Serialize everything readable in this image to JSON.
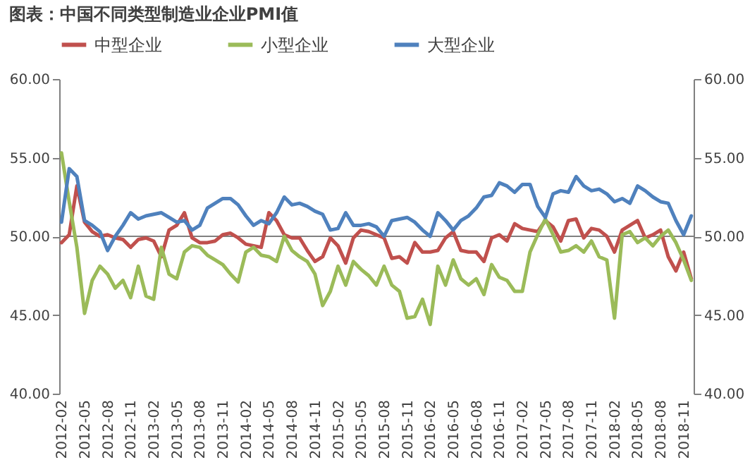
{
  "chart_data": {
    "type": "line",
    "title": "图表：中国不同类型制造业企业PMI值",
    "categories": [
      "2012-02",
      null,
      null,
      "2012-05",
      null,
      null,
      "2012-08",
      null,
      null,
      "2012-11",
      null,
      null,
      "2013-02",
      null,
      null,
      "2013-05",
      null,
      null,
      "2013-08",
      null,
      null,
      "2013-11",
      null,
      null,
      "2014-02",
      null,
      null,
      "2014-05",
      null,
      null,
      "2014-08",
      null,
      null,
      "2014-11",
      null,
      null,
      "2015-02",
      null,
      null,
      "2015-05",
      null,
      null,
      "2015-08",
      null,
      null,
      "2015-11",
      null,
      null,
      "2016-02",
      null,
      null,
      "2016-05",
      null,
      null,
      "2016-08",
      null,
      null,
      "2016-11",
      null,
      null,
      "2017-02",
      null,
      null,
      "2017-05",
      null,
      null,
      "2017-08",
      null,
      null,
      "2017-11",
      null,
      null,
      "2018-02",
      null,
      null,
      "2018-05",
      null,
      null,
      "2018-08",
      null,
      null,
      "2018-11",
      null
    ],
    "series": [
      {
        "name": "中型企业",
        "color": "#c0504d",
        "values": [
          49.6,
          50.1,
          53.2,
          50.9,
          50.3,
          50.0,
          50.1,
          49.9,
          49.8,
          49.3,
          49.8,
          49.9,
          49.7,
          48.7,
          50.4,
          50.7,
          51.5,
          49.9,
          49.6,
          49.6,
          49.7,
          50.1,
          50.2,
          49.9,
          49.5,
          49.4,
          49.3,
          51.5,
          51.0,
          50.1,
          49.9,
          49.9,
          49.1,
          48.4,
          48.7,
          49.9,
          49.4,
          48.3,
          49.9,
          50.4,
          50.3,
          50.1,
          49.9,
          48.6,
          48.7,
          48.3,
          49.6,
          49.0,
          49.0,
          49.1,
          49.9,
          50.3,
          49.1,
          49.0,
          49.0,
          48.4,
          49.9,
          50.1,
          49.7,
          50.8,
          50.5,
          50.4,
          50.3,
          51.0,
          50.6,
          49.7,
          51.0,
          51.1,
          49.9,
          50.5,
          50.4,
          50.0,
          49.0,
          50.4,
          50.7,
          51.0,
          49.9,
          50.1,
          50.4,
          48.7,
          47.8,
          49.0,
          47.3
        ]
      },
      {
        "name": "小型企业",
        "color": "#9bbb59",
        "values": [
          55.3,
          52.2,
          49.3,
          45.1,
          47.2,
          48.1,
          47.6,
          46.7,
          47.2,
          46.1,
          48.1,
          46.2,
          46.0,
          49.3,
          47.6,
          47.3,
          49.0,
          49.4,
          49.3,
          48.8,
          48.5,
          48.2,
          47.6,
          47.1,
          49.0,
          49.3,
          48.8,
          48.7,
          48.4,
          50.0,
          49.1,
          48.7,
          48.4,
          47.6,
          45.6,
          46.5,
          48.1,
          46.9,
          48.4,
          47.9,
          47.5,
          46.9,
          48.1,
          46.9,
          46.5,
          44.8,
          44.9,
          46.0,
          44.4,
          48.1,
          46.9,
          48.5,
          47.3,
          46.9,
          47.3,
          46.3,
          48.2,
          47.4,
          47.2,
          46.5,
          46.5,
          49.0,
          50.1,
          51.1,
          50.1,
          49.0,
          49.1,
          49.4,
          49.0,
          49.7,
          48.7,
          48.5,
          44.8,
          50.1,
          50.3,
          49.6,
          49.9,
          49.4,
          50.0,
          50.4,
          49.6,
          48.5,
          47.2
        ]
      },
      {
        "name": "大型企业",
        "color": "#4f81bd",
        "values": [
          50.9,
          54.3,
          53.8,
          51.0,
          50.7,
          50.3,
          49.1,
          50.0,
          50.7,
          51.5,
          51.1,
          51.3,
          51.4,
          51.5,
          51.2,
          50.9,
          51.0,
          50.4,
          50.7,
          51.8,
          52.1,
          52.4,
          52.4,
          52.0,
          51.3,
          50.7,
          51.0,
          50.8,
          51.5,
          52.5,
          52.0,
          52.1,
          51.9,
          51.6,
          51.4,
          50.4,
          50.5,
          51.5,
          50.7,
          50.7,
          50.8,
          50.6,
          50.0,
          51.0,
          51.1,
          51.2,
          50.9,
          50.4,
          50.0,
          51.5,
          51.0,
          50.4,
          51.0,
          51.3,
          51.8,
          52.5,
          52.6,
          53.4,
          53.2,
          52.8,
          53.3,
          53.3,
          51.9,
          51.2,
          52.7,
          52.9,
          52.8,
          53.8,
          53.2,
          52.9,
          53.0,
          52.7,
          52.2,
          52.4,
          52.1,
          53.2,
          52.9,
          52.5,
          52.2,
          52.1,
          51.0,
          50.1,
          51.3
        ]
      }
    ],
    "ylim": [
      40,
      60
    ],
    "yticks": [
      {
        "value": 40,
        "label": "40.00"
      },
      {
        "value": 45,
        "label": "45.00"
      },
      {
        "value": 50,
        "label": "50.00"
      },
      {
        "value": 55,
        "label": "55.00"
      },
      {
        "value": 60,
        "label": "60.00"
      }
    ],
    "y2lim": [
      40,
      60
    ],
    "y2ticks": [
      {
        "value": 40,
        "label": "40.00"
      },
      {
        "value": 45,
        "label": "45.00"
      },
      {
        "value": 50,
        "label": "50.00"
      },
      {
        "value": 55,
        "label": "55.00"
      },
      {
        "value": 60,
        "label": "60.00"
      }
    ],
    "ref_lines": [
      {
        "axis": "y",
        "value": 50,
        "color": "#808080"
      }
    ],
    "legend": "top",
    "grid": false,
    "marker": "none",
    "line_style": "solid"
  }
}
